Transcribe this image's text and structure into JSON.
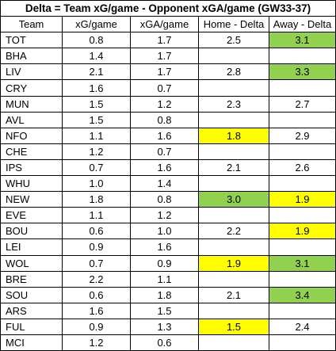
{
  "title": "Delta = Team xG/game - Opponent xGA/game (GW33-37)",
  "headers": [
    "Team",
    "xG/game",
    "xGA/game",
    "Home - Delta",
    "Away - Delta"
  ],
  "colors": {
    "green": "#92d050",
    "yellow": "#ffff00",
    "border": "#000000",
    "background": "#ffffff"
  },
  "rows": [
    {
      "team": "TOT",
      "xg": "0.8",
      "xga": "1.7",
      "home": "2.5",
      "away": "3.1",
      "home_hl": "",
      "away_hl": "green"
    },
    {
      "team": "BHA",
      "xg": "1.4",
      "xga": "1.7",
      "home": "",
      "away": "",
      "home_hl": "",
      "away_hl": ""
    },
    {
      "team": "LIV",
      "xg": "2.1",
      "xga": "1.7",
      "home": "2.8",
      "away": "3.3",
      "home_hl": "",
      "away_hl": "green"
    },
    {
      "team": "CRY",
      "xg": "1.6",
      "xga": "0.7",
      "home": "",
      "away": "",
      "home_hl": "",
      "away_hl": ""
    },
    {
      "team": "MUN",
      "xg": "1.5",
      "xga": "1.2",
      "home": "2.3",
      "away": "2.7",
      "home_hl": "",
      "away_hl": ""
    },
    {
      "team": "AVL",
      "xg": "1.5",
      "xga": "0.8",
      "home": "",
      "away": "",
      "home_hl": "",
      "away_hl": ""
    },
    {
      "team": "NFO",
      "xg": "1.1",
      "xga": "1.6",
      "home": "1.8",
      "away": "2.9",
      "home_hl": "yellow",
      "away_hl": ""
    },
    {
      "team": "CHE",
      "xg": "1.2",
      "xga": "0.7",
      "home": "",
      "away": "",
      "home_hl": "",
      "away_hl": ""
    },
    {
      "team": "IPS",
      "xg": "0.7",
      "xga": "1.6",
      "home": "2.1",
      "away": "2.6",
      "home_hl": "",
      "away_hl": ""
    },
    {
      "team": "WHU",
      "xg": "1.0",
      "xga": "1.4",
      "home": "",
      "away": "",
      "home_hl": "",
      "away_hl": ""
    },
    {
      "team": "NEW",
      "xg": "1.8",
      "xga": "0.8",
      "home": "3.0",
      "away": "1.9",
      "home_hl": "green",
      "away_hl": "yellow"
    },
    {
      "team": "EVE",
      "xg": "1.1",
      "xga": "1.2",
      "home": "",
      "away": "",
      "home_hl": "",
      "away_hl": ""
    },
    {
      "team": "BOU",
      "xg": "0.6",
      "xga": "1.0",
      "home": "2.2",
      "away": "1.9",
      "home_hl": "",
      "away_hl": "yellow"
    },
    {
      "team": "LEI",
      "xg": "0.9",
      "xga": "1.6",
      "home": "",
      "away": "",
      "home_hl": "",
      "away_hl": ""
    },
    {
      "team": "WOL",
      "xg": "0.7",
      "xga": "0.9",
      "home": "1.9",
      "away": "3.1",
      "home_hl": "yellow",
      "away_hl": "green"
    },
    {
      "team": "BRE",
      "xg": "2.2",
      "xga": "1.1",
      "home": "",
      "away": "",
      "home_hl": "",
      "away_hl": ""
    },
    {
      "team": "SOU",
      "xg": "0.6",
      "xga": "1.8",
      "home": "2.1",
      "away": "3.4",
      "home_hl": "",
      "away_hl": "green"
    },
    {
      "team": "ARS",
      "xg": "1.6",
      "xga": "1.5",
      "home": "",
      "away": "",
      "home_hl": "",
      "away_hl": ""
    },
    {
      "team": "FUL",
      "xg": "0.9",
      "xga": "1.3",
      "home": "1.5",
      "away": "2.4",
      "home_hl": "yellow",
      "away_hl": ""
    },
    {
      "team": "MCI",
      "xg": "1.2",
      "xga": "0.6",
      "home": "",
      "away": "",
      "home_hl": "",
      "away_hl": ""
    }
  ]
}
